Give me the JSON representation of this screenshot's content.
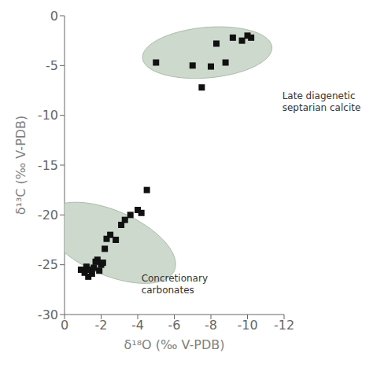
{
  "chart_data": {
    "type": "scatter",
    "xlabel": "δ¹⁸O (‰ V-PDB)",
    "ylabel": "δ¹³C (‰ V-PDB)",
    "xlim": [
      0,
      -12
    ],
    "ylim": [
      -30,
      0
    ],
    "xticks": [
      0,
      -2,
      -4,
      -6,
      -8,
      -10,
      -12
    ],
    "yticks": [
      0,
      -5,
      -10,
      -15,
      -20,
      -25,
      -30
    ],
    "grid": false,
    "series": [
      {
        "type": "scatter",
        "color": "#111111",
        "marker": "square",
        "x": [
          -5.0,
          -7.0,
          -7.5,
          -8.0,
          -8.3,
          -8.8,
          -9.2,
          -9.7,
          -10.0,
          -10.2
        ],
        "values": [
          -4.7,
          -5.0,
          -7.2,
          -5.1,
          -2.8,
          -4.7,
          -2.2,
          -2.5,
          -2.0,
          -2.2
        ]
      },
      {
        "type": "scatter",
        "color": "#111111",
        "marker": "square",
        "x": [
          -0.9,
          -1.1,
          -1.2,
          -1.3,
          -1.35,
          -1.5,
          -1.6,
          -1.7,
          -1.8,
          -1.9,
          -2.0,
          -2.1,
          -2.2,
          -2.3,
          -2.5,
          -2.8,
          -3.1,
          -3.3,
          -3.6,
          -4.0,
          -4.2,
          -4.5
        ],
        "values": [
          -25.5,
          -25.8,
          -25.2,
          -26.2,
          -25.5,
          -25.9,
          -25.3,
          -24.7,
          -24.5,
          -25.6,
          -25.0,
          -24.8,
          -23.4,
          -22.4,
          -22.0,
          -22.5,
          -21.0,
          -20.5,
          -20.0,
          -19.5,
          -19.8,
          -17.5
        ]
      }
    ],
    "ellipses": [
      {
        "center_x": -7.8,
        "center_y": -3.7,
        "width": 7.2,
        "height": 5.0,
        "angle": -15,
        "color": "#c8d5c8",
        "edge_color": "#aabbaa"
      },
      {
        "center_x": -2.5,
        "center_y": -22.8,
        "width": 5.2,
        "height": 9.5,
        "angle": -38,
        "color": "#c8d5c8",
        "edge_color": "#aabbaa"
      }
    ],
    "annotations": [
      {
        "text": "Late diagenetic\nseptarian calcite",
        "x": -11.9,
        "y": -7.5
      },
      {
        "text": "Concretionary\ncarbonates",
        "x": -4.2,
        "y": -25.8
      }
    ]
  }
}
